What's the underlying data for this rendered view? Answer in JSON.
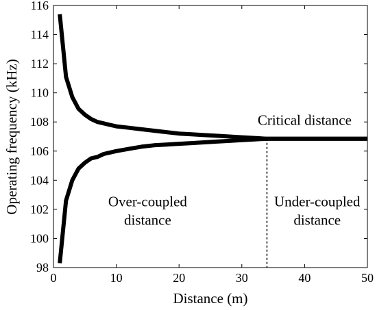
{
  "chart_data": {
    "type": "line",
    "title": "",
    "xlabel": "Distance (m)",
    "ylabel": "Operating frequency (kHz)",
    "xlim": [
      0,
      50
    ],
    "ylim": [
      98,
      116
    ],
    "xticks": [
      "0",
      "10",
      "20",
      "30",
      "40",
      "50"
    ],
    "yticks": [
      "98",
      "100",
      "102",
      "104",
      "106",
      "108",
      "110",
      "112",
      "114",
      "116"
    ],
    "grid": false,
    "legend": "none",
    "series": [
      {
        "x": [
          1,
          2,
          3,
          4,
          5,
          6,
          7,
          8,
          9,
          10,
          12,
          14,
          16,
          18,
          20,
          22,
          24,
          26,
          28,
          30,
          32,
          34,
          36,
          40,
          45,
          50
        ],
        "values": [
          115.4,
          111.1,
          109.7,
          108.9,
          108.5,
          108.2,
          108.0,
          107.9,
          107.8,
          107.7,
          107.6,
          107.5,
          107.4,
          107.3,
          107.2,
          107.15,
          107.1,
          107.05,
          107.0,
          106.95,
          106.9,
          106.85,
          106.85,
          106.85,
          106.85,
          106.85
        ]
      },
      {
        "x": [
          1,
          2,
          3,
          4,
          5,
          6,
          7,
          8,
          9,
          10,
          12,
          14,
          16,
          18,
          20,
          22,
          24,
          26,
          28,
          30,
          32,
          34,
          36,
          40,
          45,
          50
        ],
        "values": [
          98.3,
          102.6,
          104.0,
          104.8,
          105.2,
          105.5,
          105.6,
          105.8,
          105.9,
          106.0,
          106.15,
          106.3,
          106.4,
          106.45,
          106.5,
          106.55,
          106.6,
          106.65,
          106.7,
          106.75,
          106.8,
          106.85,
          106.85,
          106.85,
          106.85,
          106.85
        ]
      }
    ],
    "critical_distance_x": 34,
    "annotations": [
      {
        "lines": [
          "Critical distance"
        ],
        "x": 40,
        "y": 107.8
      },
      {
        "lines": [
          "Over-coupled",
          "distance"
        ],
        "x": 15,
        "y": 102.2
      },
      {
        "lines": [
          "Under-coupled",
          "distance"
        ],
        "x": 42,
        "y": 102.2
      }
    ]
  }
}
